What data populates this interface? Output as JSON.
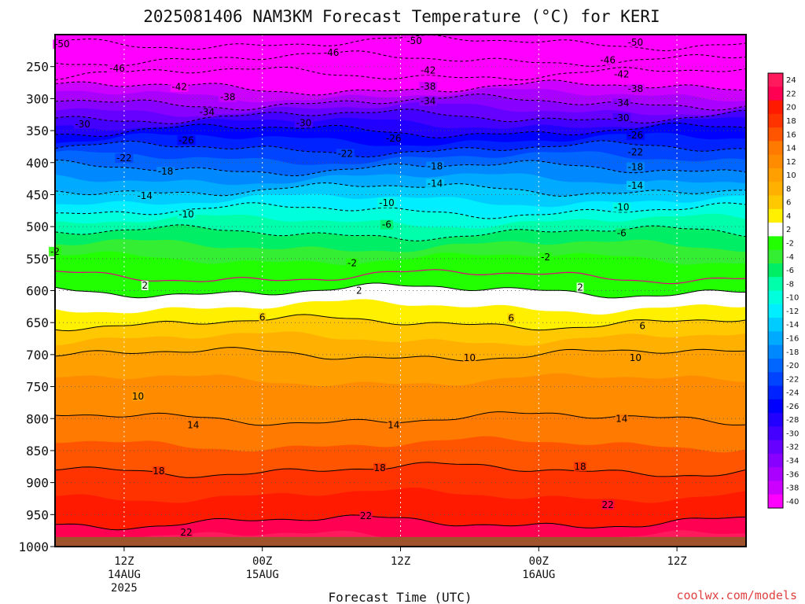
{
  "title": "2025081406 NAM3KM Forecast Temperature (°C) for KERI",
  "credit": "coolwx.com/models",
  "chart_data": {
    "type": "heatmap",
    "title": "2025081406 NAM3KM Forecast Temperature (°C) for KERI",
    "xlabel": "Forecast Time (UTC)",
    "ylabel": "",
    "x_range_hours": [
      -5,
      45
    ],
    "x_ticks": [
      {
        "hour": 0,
        "lines": [
          "12Z",
          "14AUG",
          "2025"
        ]
      },
      {
        "hour": 10,
        "lines": [
          "00Z",
          "15AUG"
        ]
      },
      {
        "hour": 20,
        "lines": [
          "12Z"
        ]
      },
      {
        "hour": 30,
        "lines": [
          "00Z",
          "16AUG"
        ]
      },
      {
        "hour": 40,
        "lines": [
          "12Z"
        ]
      }
    ],
    "y_range_hpa": [
      200,
      1000
    ],
    "y_ticks": [
      250,
      300,
      350,
      400,
      450,
      500,
      550,
      600,
      650,
      700,
      750,
      800,
      850,
      900,
      950,
      1000
    ],
    "ground_level_hpa": 985,
    "isotherm_profile": {
      "pressure_hpa": [
        200,
        250,
        300,
        350,
        400,
        450,
        500,
        550,
        600,
        650,
        700,
        750,
        800,
        850,
        900,
        950,
        985
      ],
      "temperature_c": [
        -52,
        -44,
        -35,
        -26,
        -19,
        -13,
        -7,
        -2,
        2,
        6,
        10,
        12.5,
        14,
        16.5,
        19,
        21.5,
        23
      ]
    },
    "contour_labels": [
      {
        "value": "-50",
        "hour": -4.5,
        "hpa": 215
      },
      {
        "value": "-50",
        "hour": 21,
        "hpa": 210
      },
      {
        "value": "-50",
        "hour": 37,
        "hpa": 212
      },
      {
        "value": "-46",
        "hour": 15,
        "hpa": 228
      },
      {
        "value": "-46",
        "hour": 35,
        "hpa": 240
      },
      {
        "value": "-46",
        "hour": -0.5,
        "hpa": 253
      },
      {
        "value": "-42",
        "hour": 4,
        "hpa": 282
      },
      {
        "value": "-42",
        "hour": 22,
        "hpa": 256
      },
      {
        "value": "-42",
        "hour": 36,
        "hpa": 262
      },
      {
        "value": "-38",
        "hour": 7.5,
        "hpa": 298
      },
      {
        "value": "-38",
        "hour": 22,
        "hpa": 281
      },
      {
        "value": "-38",
        "hour": 37,
        "hpa": 285
      },
      {
        "value": "-34",
        "hour": 6,
        "hpa": 321
      },
      {
        "value": "-34",
        "hour": 22,
        "hpa": 304
      },
      {
        "value": "-34",
        "hour": 36,
        "hpa": 307
      },
      {
        "value": "-30",
        "hour": -3,
        "hpa": 340
      },
      {
        "value": "-30",
        "hour": 13,
        "hpa": 338
      },
      {
        "value": "-30",
        "hour": 36,
        "hpa": 330
      },
      {
        "value": "-26",
        "hour": 4.5,
        "hpa": 365
      },
      {
        "value": "-26",
        "hour": 19.5,
        "hpa": 362
      },
      {
        "value": "-26",
        "hour": 37,
        "hpa": 357
      },
      {
        "value": "-22",
        "hour": 0,
        "hpa": 393
      },
      {
        "value": "-22",
        "hour": 16,
        "hpa": 386
      },
      {
        "value": "-22",
        "hour": 37,
        "hpa": 384
      },
      {
        "value": "-18",
        "hour": 3,
        "hpa": 414
      },
      {
        "value": "-18",
        "hour": 22.5,
        "hpa": 406
      },
      {
        "value": "-18",
        "hour": 37,
        "hpa": 407
      },
      {
        "value": "-14",
        "hour": 1.5,
        "hpa": 452
      },
      {
        "value": "-14",
        "hour": 22.5,
        "hpa": 433
      },
      {
        "value": "-14",
        "hour": 37,
        "hpa": 436
      },
      {
        "value": "-10",
        "hour": 4.5,
        "hpa": 481
      },
      {
        "value": "-10",
        "hour": 19,
        "hpa": 463
      },
      {
        "value": "-10",
        "hour": 36,
        "hpa": 470
      },
      {
        "value": "-6",
        "hour": 19,
        "hpa": 497
      },
      {
        "value": "-6",
        "hour": 36,
        "hpa": 510
      },
      {
        "value": "-2",
        "hour": -5,
        "hpa": 539
      },
      {
        "value": "-2",
        "hour": 16.5,
        "hpa": 557
      },
      {
        "value": "-2",
        "hour": 30.5,
        "hpa": 548
      },
      {
        "value": "2",
        "hour": 1.5,
        "hpa": 592
      },
      {
        "value": "2",
        "hour": 17,
        "hpa": 600
      },
      {
        "value": "2",
        "hour": 33,
        "hpa": 595
      },
      {
        "value": "6",
        "hour": 10,
        "hpa": 642
      },
      {
        "value": "6",
        "hour": 28,
        "hpa": 643
      },
      {
        "value": "6",
        "hour": 37.5,
        "hpa": 655
      },
      {
        "value": "10",
        "hour": 1,
        "hpa": 765
      },
      {
        "value": "10",
        "hour": 25,
        "hpa": 705
      },
      {
        "value": "10",
        "hour": 37,
        "hpa": 705
      },
      {
        "value": "14",
        "hour": 5,
        "hpa": 810
      },
      {
        "value": "14",
        "hour": 19.5,
        "hpa": 810
      },
      {
        "value": "14",
        "hour": 36,
        "hpa": 800
      },
      {
        "value": "18",
        "hour": 2.5,
        "hpa": 882
      },
      {
        "value": "18",
        "hour": 18.5,
        "hpa": 877
      },
      {
        "value": "18",
        "hour": 33,
        "hpa": 875
      },
      {
        "value": "22",
        "hour": 4.5,
        "hpa": 978
      },
      {
        "value": "22",
        "hour": 17.5,
        "hpa": 952
      },
      {
        "value": "22",
        "hour": 35,
        "hpa": 935
      }
    ],
    "colorbar_labels": [
      "24",
      "22",
      "20",
      "18",
      "16",
      "14",
      "12",
      "10",
      "8",
      "6",
      "4",
      "2",
      "-2",
      "-4",
      "-6",
      "-8",
      "-10",
      "-12",
      "-14",
      "-16",
      "-18",
      "-20",
      "-22",
      "-24",
      "-26",
      "-28",
      "-30",
      "-32",
      "-34",
      "-36",
      "-38",
      "-40"
    ],
    "colors": {
      "ground": "#a0522d",
      "contour_pos": "#000000",
      "contour_neg": "#000000",
      "freezing_line": "#e0007f",
      "palette": [
        {
          "v": 24,
          "c": "#ff1a5e"
        },
        {
          "v": 22,
          "c": "#ff0052"
        },
        {
          "v": 20,
          "c": "#ff1a00"
        },
        {
          "v": 18,
          "c": "#ff3300"
        },
        {
          "v": 16,
          "c": "#ff5500"
        },
        {
          "v": 14,
          "c": "#ff7a00"
        },
        {
          "v": 12,
          "c": "#ff8c00"
        },
        {
          "v": 10,
          "c": "#ffa000"
        },
        {
          "v": 8,
          "c": "#ffb000"
        },
        {
          "v": 6,
          "c": "#ffc800"
        },
        {
          "v": 4,
          "c": "#fff000"
        },
        {
          "v": 2,
          "c": "#ffffff"
        },
        {
          "v": -2,
          "c": "#22ff00"
        },
        {
          "v": -4,
          "c": "#33ee33"
        },
        {
          "v": -6,
          "c": "#00ee66"
        },
        {
          "v": -8,
          "c": "#00ffaa"
        },
        {
          "v": -10,
          "c": "#00ffdd"
        },
        {
          "v": -12,
          "c": "#00eeff"
        },
        {
          "v": -14,
          "c": "#00ccff"
        },
        {
          "v": -16,
          "c": "#00aaff"
        },
        {
          "v": -18,
          "c": "#0088ff"
        },
        {
          "v": -20,
          "c": "#0066ff"
        },
        {
          "v": -22,
          "c": "#0044ff"
        },
        {
          "v": -24,
          "c": "#0022ff"
        },
        {
          "v": -26,
          "c": "#0000ff"
        },
        {
          "v": -28,
          "c": "#2200ff"
        },
        {
          "v": -30,
          "c": "#4400ff"
        },
        {
          "v": -32,
          "c": "#6600ff"
        },
        {
          "v": -34,
          "c": "#8800ff"
        },
        {
          "v": -36,
          "c": "#aa00ff"
        },
        {
          "v": -38,
          "c": "#cc00ff"
        },
        {
          "v": -40,
          "c": "#ff00ff"
        }
      ]
    }
  }
}
